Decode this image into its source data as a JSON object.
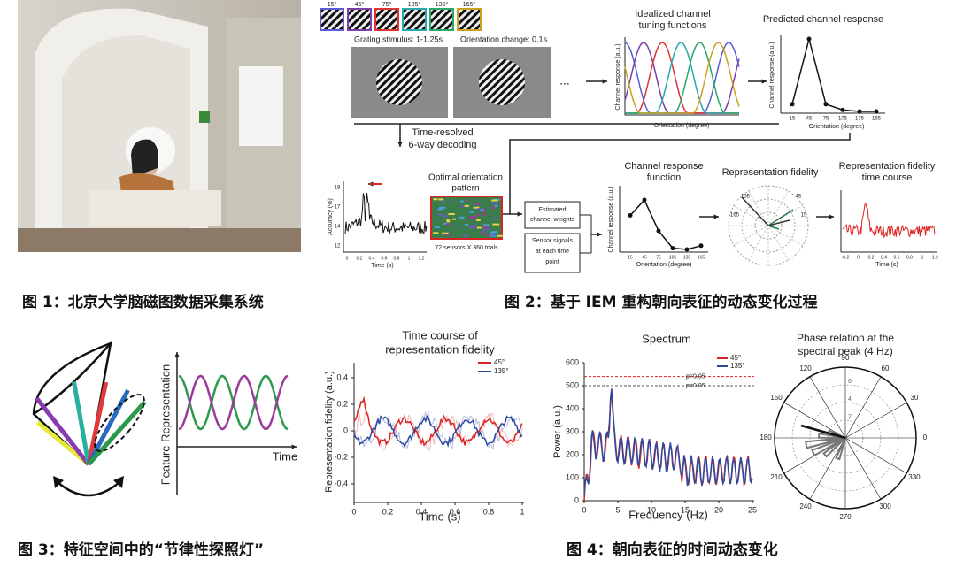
{
  "figure1": {
    "caption": "图 1：北京大学脑磁图数据采集系统"
  },
  "figure2": {
    "caption": "图 2：基于 IEM 重构朝向表征的动态变化过程",
    "orientations": [
      "15°",
      "45°",
      "75°",
      "105°",
      "135°",
      "165°"
    ],
    "grating_stimulus": "Grating stimulus: 1-1.25s",
    "orientation_change": "Orientation change: 0.1s",
    "ellipsis": "...",
    "decoding": [
      "Time-resolved",
      "6-way decoding"
    ],
    "tuning_title": [
      "Idealized channel",
      "tuning functions"
    ],
    "tuning_ylabel": "Channel response (a.u.)",
    "tuning_xlabel": "Orientation (degree)",
    "predicted_title": "Predicted channel response",
    "predicted_ylabel": "Channel response (a.u.)",
    "predicted_xlabel": "Orientation (degree)",
    "predicted_xticks": [
      15,
      45,
      75,
      105,
      135,
      165
    ],
    "accuracy_ylabel": "Accuracy (%)",
    "accuracy_xlabel": "Time (s)",
    "accuracy_yticks": [
      19,
      17,
      14,
      12
    ],
    "accuracy_xticks": [
      0,
      0.2,
      0.4,
      0.6,
      0.8,
      1,
      1.2
    ],
    "pattern_title": [
      "Optimal orientation",
      "pattern"
    ],
    "pattern_size": "72 sensors X 360 trials",
    "weights": [
      "Estimated",
      "channel weights"
    ],
    "signals": [
      "Sensor signals",
      "at each time",
      "point"
    ],
    "crf_title": [
      "Channel response",
      "function"
    ],
    "crf_ylabel": "Channel response (a.u.)",
    "crf_xlabel": "Orientation (degree)",
    "crf_xticks": [
      15,
      45,
      75,
      105,
      135,
      165
    ],
    "fidelity_title": "Representation fidelity",
    "polar_labels": [
      135,
      45,
      165,
      15
    ],
    "course_title": [
      "Representation fidelity",
      "time course"
    ],
    "course_xlabel": "Time (s)",
    "course_xticks": [
      -0.2,
      0,
      0.2,
      0.4,
      0.6,
      0.8,
      1,
      1.2
    ]
  },
  "figure3": {
    "caption": "图 3：特征空间中的“节律性探照灯”",
    "ylabel": "Feature Representation",
    "xlabel": "Time"
  },
  "figure4": {
    "caption": "图 4：朝向表征的时间动态变化",
    "time_course": {
      "title": [
        "Time course of",
        "representation fidelity"
      ],
      "ylabel": "Representation fidelity (a.u.)",
      "xlabel": "Time (s)",
      "yticks": [
        0.4,
        0.2,
        0,
        -0.2,
        -0.4
      ],
      "xticks": [
        0,
        0.2,
        0.4,
        0.6,
        0.8,
        1
      ],
      "legend": [
        "45°",
        "135°"
      ]
    },
    "spectrum": {
      "title": "Spectrum",
      "ylabel": "Power (a.u.)",
      "xlabel": "Frequency (Hz)",
      "yticks": [
        600,
        500,
        400,
        300,
        200,
        100,
        0
      ],
      "xticks": [
        0,
        5,
        10,
        15,
        20,
        25
      ],
      "legend": [
        "45°",
        "135°"
      ],
      "thresholds": [
        "p=0.05",
        "p=0.05"
      ]
    },
    "phase": {
      "title": [
        "Phase relation at the",
        "spectral peak (4 Hz)"
      ],
      "angles": [
        90,
        60,
        30,
        0,
        330,
        300,
        270,
        240,
        210,
        180,
        150,
        120
      ],
      "radii": [
        6,
        4,
        2
      ]
    }
  }
}
